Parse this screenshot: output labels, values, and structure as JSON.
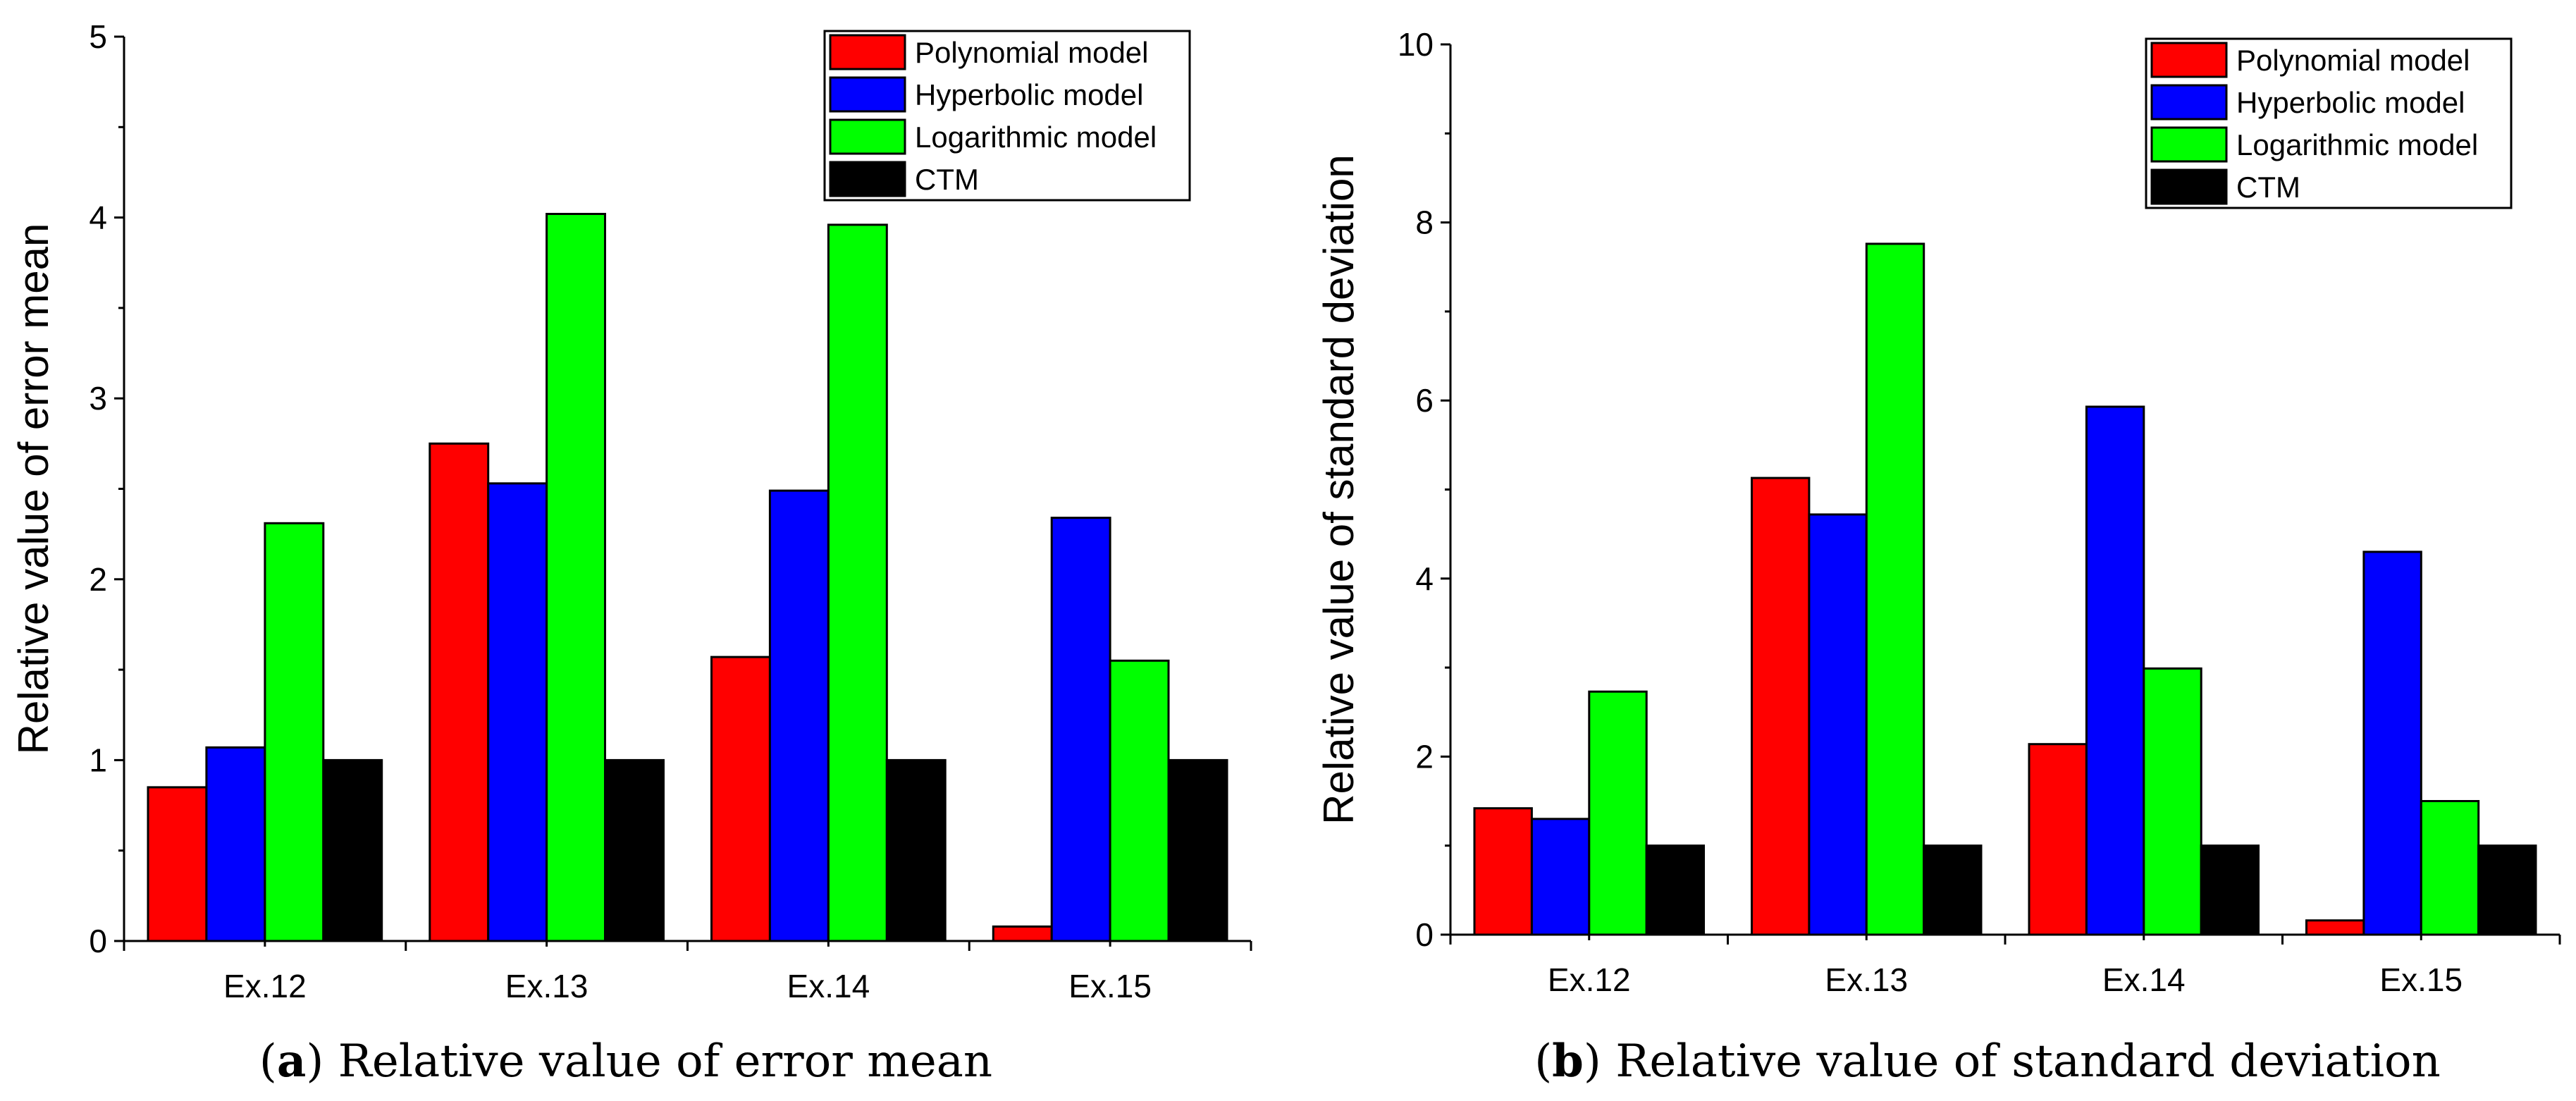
{
  "chart_data": [
    {
      "type": "bar",
      "panel_letter": "a",
      "caption_text": "Relative value of error mean",
      "ylabel": "Relative value of error mean",
      "xlabel": "",
      "categories": [
        "Ex.12",
        "Ex.13",
        "Ex.14",
        "Ex.15"
      ],
      "ylim": [
        0,
        5
      ],
      "yticks": [
        "0",
        "1",
        "2",
        "3",
        "4",
        "5"
      ],
      "legend_position": "top-right",
      "series": [
        {
          "name": "Polynomial model",
          "color": "#ff0000",
          "values": [
            0.85,
            2.75,
            1.57,
            0.08
          ]
        },
        {
          "name": "Hyperbolic model",
          "color": "#0000ff",
          "values": [
            1.07,
            2.53,
            2.49,
            2.34
          ]
        },
        {
          "name": "Logarithmic model",
          "color": "#00ff00",
          "values": [
            2.31,
            4.02,
            3.96,
            1.55
          ]
        },
        {
          "name": "CTM",
          "color": "#000000",
          "values": [
            1.0,
            1.0,
            1.0,
            1.0
          ]
        }
      ]
    },
    {
      "type": "bar",
      "panel_letter": "b",
      "caption_text": "Relative value of standard deviation",
      "ylabel": "Relative value of standard deviation",
      "xlabel": "",
      "categories": [
        "Ex.12",
        "Ex.13",
        "Ex.14",
        "Ex.15"
      ],
      "ylim": [
        0,
        10
      ],
      "yticks": [
        "0",
        "2",
        "4",
        "6",
        "8",
        "10"
      ],
      "legend_position": "top-right",
      "series": [
        {
          "name": "Polynomial model",
          "color": "#ff0000",
          "values": [
            1.42,
            5.13,
            2.14,
            0.16
          ]
        },
        {
          "name": "Hyperbolic model",
          "color": "#0000ff",
          "values": [
            1.3,
            4.72,
            5.93,
            4.3
          ]
        },
        {
          "name": "Logarithmic model",
          "color": "#00ff00",
          "values": [
            2.73,
            7.76,
            2.99,
            1.5
          ]
        },
        {
          "name": "CTM",
          "color": "#000000",
          "values": [
            1.0,
            1.0,
            1.0,
            1.0
          ]
        }
      ]
    }
  ]
}
